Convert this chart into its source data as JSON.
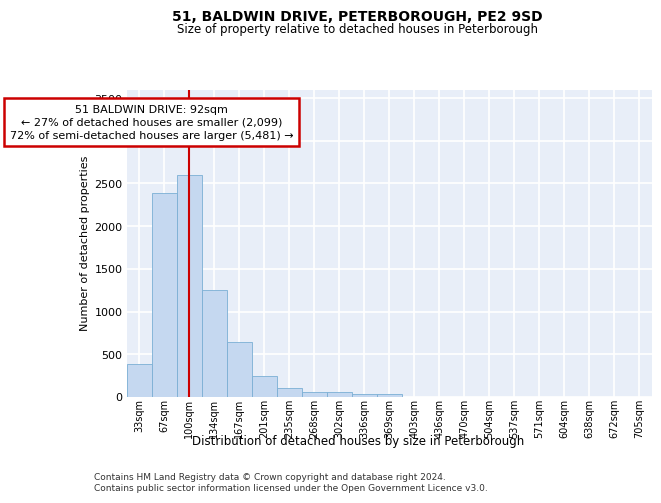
{
  "title": "51, BALDWIN DRIVE, PETERBOROUGH, PE2 9SD",
  "subtitle": "Size of property relative to detached houses in Peterborough",
  "xlabel": "Distribution of detached houses by size in Peterborough",
  "ylabel": "Number of detached properties",
  "footnote1": "Contains HM Land Registry data © Crown copyright and database right 2024.",
  "footnote2": "Contains public sector information licensed under the Open Government Licence v3.0.",
  "annotation_line1": "51 BALDWIN DRIVE: 92sqm",
  "annotation_line2": "← 27% of detached houses are smaller (2,099)",
  "annotation_line3": "72% of semi-detached houses are larger (5,481) →",
  "bar_color": "#c5d8f0",
  "bar_edge_color": "#7bafd4",
  "vline_color": "#cc0000",
  "annotation_box_edgecolor": "#cc0000",
  "background_color": "#e8eef8",
  "categories": [
    "33sqm",
    "67sqm",
    "100sqm",
    "134sqm",
    "167sqm",
    "201sqm",
    "235sqm",
    "268sqm",
    "302sqm",
    "336sqm",
    "369sqm",
    "403sqm",
    "436sqm",
    "470sqm",
    "504sqm",
    "537sqm",
    "571sqm",
    "604sqm",
    "638sqm",
    "672sqm",
    "705sqm"
  ],
  "values": [
    390,
    2390,
    2600,
    1250,
    640,
    250,
    100,
    60,
    55,
    40,
    30,
    0,
    0,
    0,
    0,
    0,
    0,
    0,
    0,
    0,
    0
  ],
  "vline_position": 2.0,
  "ylim": [
    0,
    3600
  ],
  "yticks": [
    0,
    500,
    1000,
    1500,
    2000,
    2500,
    3000,
    3500
  ]
}
